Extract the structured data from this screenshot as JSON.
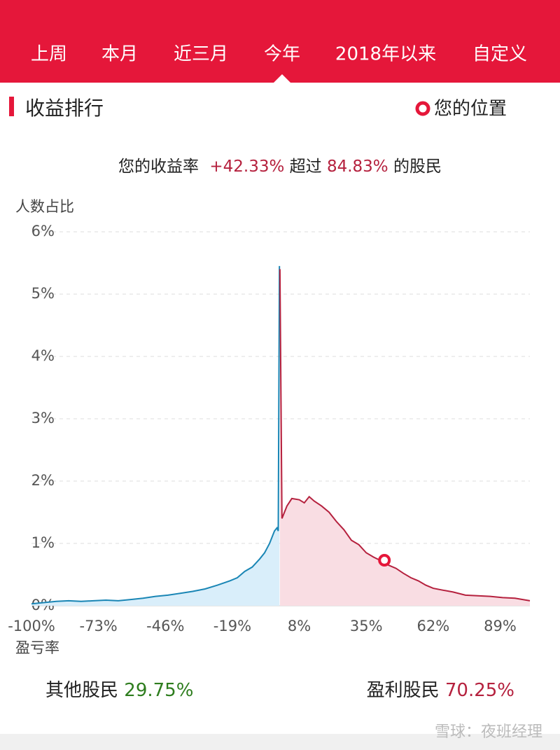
{
  "tabs": [
    "上周",
    "本月",
    "近三月",
    "今年",
    "2018年以来",
    "自定义"
  ],
  "selected_tab": 3,
  "section_title": "收益排行",
  "position_legend": "您的位置",
  "summary": {
    "prefix": "您的收益率",
    "return": "+42.33%",
    "middle": "超过",
    "percent": "84.83%",
    "suffix": "的股民"
  },
  "chart_data": {
    "type": "area",
    "y_label": "人数占比",
    "x_label": "盈亏率",
    "xlim": [
      -100,
      101
    ],
    "ylim": [
      0,
      6
    ],
    "xticks": [
      {
        "value": -100,
        "label": "-100%"
      },
      {
        "value": -73,
        "label": "-73%"
      },
      {
        "value": -46,
        "label": "-46%"
      },
      {
        "value": -19,
        "label": "-19%"
      },
      {
        "value": 8,
        "label": "8%"
      },
      {
        "value": 35,
        "label": "35%"
      },
      {
        "value": 62,
        "label": "62%"
      },
      {
        "value": 89,
        "label": "89%"
      }
    ],
    "yticks": [
      {
        "value": 0,
        "label": "0%"
      },
      {
        "value": 1,
        "label": "1%"
      },
      {
        "value": 2,
        "label": "2%"
      },
      {
        "value": 3,
        "label": "3%"
      },
      {
        "value": 4,
        "label": "4%"
      },
      {
        "value": 5,
        "label": "5%"
      },
      {
        "value": 6,
        "label": "6%"
      }
    ],
    "grid": true,
    "series": [
      {
        "color": "#1a86b5",
        "fill": "#d9eefa",
        "x": [
          -100,
          -95,
          -90,
          -85,
          -80,
          -75,
          -70,
          -65,
          -60,
          -55,
          -50,
          -45,
          -40,
          -35,
          -30,
          -25,
          -20,
          -17,
          -14,
          -11,
          -8,
          -6,
          -4,
          -2,
          -1,
          -0.5,
          0
        ],
        "values": [
          0.03,
          0.05,
          0.07,
          0.08,
          0.07,
          0.08,
          0.09,
          0.08,
          0.1,
          0.12,
          0.15,
          0.17,
          0.2,
          0.23,
          0.27,
          0.33,
          0.4,
          0.45,
          0.55,
          0.62,
          0.75,
          0.85,
          1.0,
          1.2,
          1.25,
          1.2,
          5.45
        ]
      },
      {
        "color": "#b5213e",
        "fill": "#f9dde3",
        "x": [
          0.2,
          1,
          3,
          5,
          8,
          10,
          12,
          14,
          17,
          20,
          23,
          26,
          29,
          32,
          35,
          38,
          41,
          44,
          47,
          50,
          53,
          56,
          59,
          62,
          66,
          70,
          75,
          80,
          85,
          90,
          95,
          101
        ],
        "values": [
          5.4,
          1.4,
          1.6,
          1.72,
          1.7,
          1.65,
          1.75,
          1.68,
          1.6,
          1.5,
          1.35,
          1.22,
          1.05,
          0.98,
          0.85,
          0.78,
          0.72,
          0.65,
          0.6,
          0.52,
          0.45,
          0.4,
          0.33,
          0.28,
          0.25,
          0.22,
          0.17,
          0.16,
          0.15,
          0.13,
          0.12,
          0.08
        ]
      }
    ],
    "marker": {
      "x": 42.33,
      "y": 0.73,
      "color": "#e5173a"
    }
  },
  "stats": {
    "loss_label": "其他股民",
    "loss_value": "29.75%",
    "profit_label": "盈利股民",
    "profit_value": "70.25%"
  },
  "watermark": "雪球：夜班经理"
}
